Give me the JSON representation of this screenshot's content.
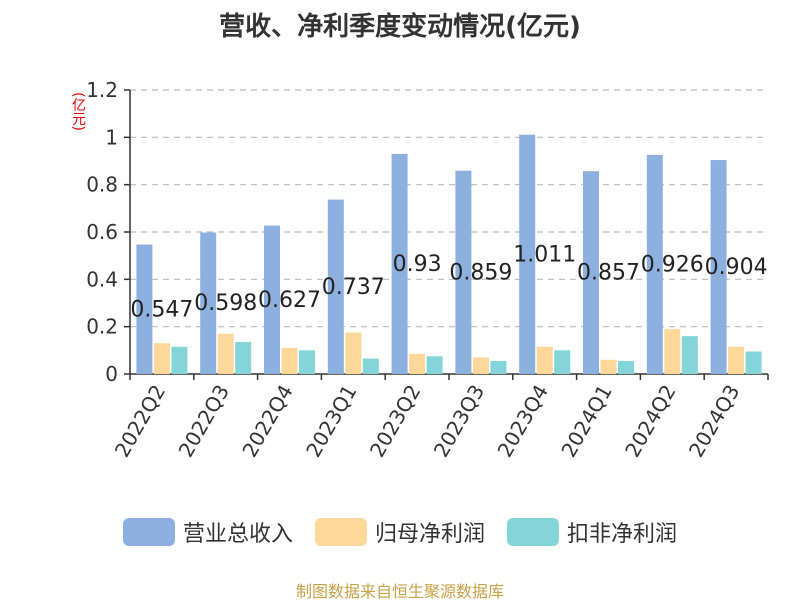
{
  "chart_data": {
    "type": "bar",
    "title": "营收、净利季度变动情况(亿元)",
    "unit_label": "(亿元)",
    "categories": [
      "2022Q2",
      "2022Q3",
      "2022Q4",
      "2023Q1",
      "2023Q2",
      "2023Q3",
      "2023Q4",
      "2024Q1",
      "2024Q2",
      "2024Q3"
    ],
    "series": [
      {
        "name": "营业总收入",
        "color": "#8eb0de",
        "values": [
          0.547,
          0.598,
          0.627,
          0.737,
          0.93,
          0.859,
          1.011,
          0.857,
          0.926,
          0.904
        ],
        "data_labels": [
          "0.547",
          "0.598",
          "0.627",
          "0.737",
          "0.93",
          "0.859",
          "1.011",
          "0.857",
          "0.926",
          "0.904"
        ]
      },
      {
        "name": "归母净利润",
        "color": "#fdd89a",
        "values": [
          0.13,
          0.17,
          0.11,
          0.175,
          0.085,
          0.07,
          0.115,
          0.06,
          0.19,
          0.115
        ]
      },
      {
        "name": "扣非净利润",
        "color": "#84d5d8",
        "values": [
          0.115,
          0.135,
          0.1,
          0.065,
          0.075,
          0.055,
          0.1,
          0.055,
          0.16,
          0.095
        ]
      }
    ],
    "ylim": [
      0,
      1.2
    ],
    "yticks": [
      "0",
      "0.2",
      "0.4",
      "0.6",
      "0.8",
      "1",
      "1.2"
    ],
    "grid": true,
    "legend_position": "bottom"
  },
  "source": "制图数据来自恒生聚源数据库"
}
